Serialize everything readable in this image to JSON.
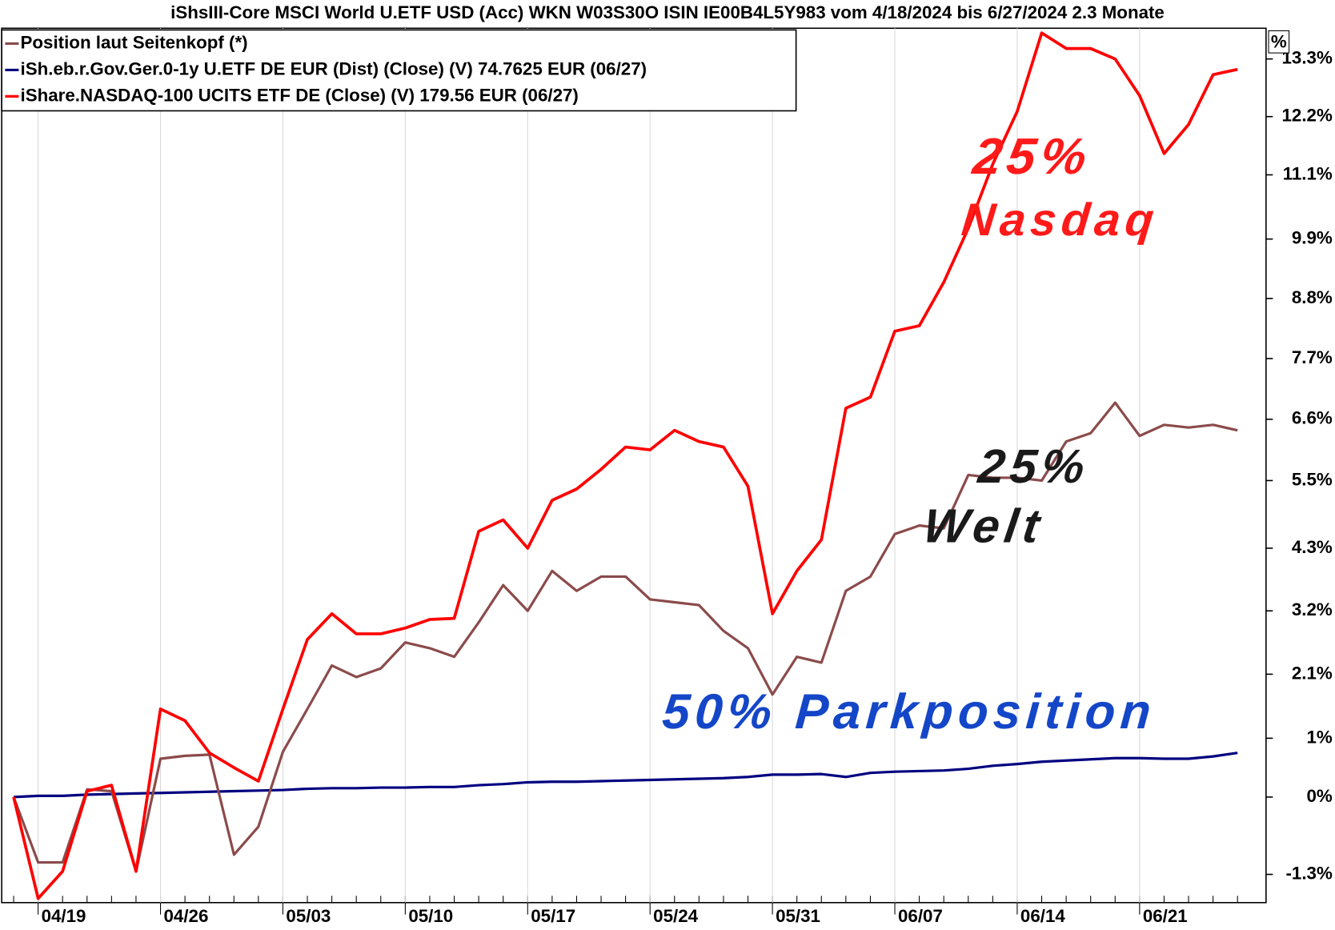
{
  "chart_data": {
    "type": "line",
    "title": "iShsIII-Core MSCI World U.ETF USD (Acc) WKN W03S30O ISIN IE00B4L5Y983 vom 4/18/2024 bis 6/27/2024 2.3 Monate",
    "y_axis_label": "%",
    "categories": [
      null,
      "04/19",
      null,
      null,
      null,
      null,
      "04/26",
      null,
      null,
      null,
      null,
      "05/03",
      null,
      null,
      null,
      null,
      "05/10",
      null,
      null,
      null,
      null,
      "05/17",
      null,
      null,
      null,
      null,
      "05/24",
      null,
      null,
      null,
      null,
      "05/31",
      null,
      null,
      null,
      null,
      "06/07",
      null,
      null,
      null,
      null,
      "06/14",
      null,
      null,
      null,
      null,
      "06/21",
      null,
      null,
      null,
      null
    ],
    "series": [
      {
        "name": "Position laut Seitenkopf (*)",
        "color": "#8b4b4b",
        "values": [
          0,
          -1.1,
          -1.1,
          0.13,
          0.1,
          -1.25,
          0.65,
          0.7,
          0.72,
          -0.97,
          -0.5,
          0.77,
          1.5,
          2.25,
          2.05,
          2.2,
          2.65,
          2.55,
          2.4,
          3.0,
          3.65,
          3.2,
          3.9,
          3.55,
          3.8,
          3.8,
          3.4,
          3.35,
          3.3,
          2.85,
          2.55,
          1.75,
          2.4,
          2.3,
          3.55,
          3.8,
          4.55,
          4.7,
          4.65,
          5.6,
          5.55,
          5.55,
          5.5,
          6.2,
          6.35,
          6.9,
          6.3,
          6.5,
          6.45,
          6.5,
          6.4
        ]
      },
      {
        "name": "iSh.eb.r.Gov.Ger.0-1y U.ETF DE EUR (Dist) (Close) (V) 74.7625 EUR (06/27)",
        "color": "#000080",
        "values": [
          0,
          0.02,
          0.02,
          0.04,
          0.05,
          0.06,
          0.07,
          0.08,
          0.09,
          0.1,
          0.11,
          0.12,
          0.14,
          0.15,
          0.15,
          0.16,
          0.16,
          0.17,
          0.17,
          0.2,
          0.22,
          0.25,
          0.26,
          0.26,
          0.27,
          0.28,
          0.29,
          0.3,
          0.31,
          0.32,
          0.34,
          0.38,
          0.38,
          0.39,
          0.34,
          0.41,
          0.43,
          0.44,
          0.45,
          0.48,
          0.53,
          0.56,
          0.6,
          0.62,
          0.64,
          0.66,
          0.66,
          0.65,
          0.65,
          0.69,
          0.75
        ]
      },
      {
        "name": "iShare.NASDAQ-100 UCITS ETF DE (Close) (V) 179.56 EUR (06/27)",
        "color": "#ff0000",
        "values": [
          0,
          -1.7,
          -1.25,
          0.1,
          0.2,
          -1.25,
          1.5,
          1.3,
          0.75,
          0.5,
          0.27,
          1.5,
          2.7,
          3.15,
          2.8,
          2.8,
          2.9,
          3.05,
          3.07,
          4.6,
          4.8,
          4.3,
          5.15,
          5.35,
          5.7,
          6.1,
          6.05,
          6.4,
          6.2,
          6.1,
          5.4,
          3.15,
          3.9,
          4.45,
          6.8,
          7.0,
          8.2,
          8.3,
          9.1,
          10.1,
          11.3,
          12.3,
          13.8,
          13.5,
          13.5,
          13.3,
          12.6,
          11.5,
          12.05,
          13.0,
          13.1
        ]
      }
    ],
    "ylim": [
      -1.77,
      13.89
    ],
    "log_scale": true,
    "yticks": [
      {
        "value": -1.3,
        "label": "-1.3%"
      },
      {
        "value": 0,
        "label": "0%"
      },
      {
        "value": 1,
        "label": "1%"
      },
      {
        "value": 2.1,
        "label": "2.1%"
      },
      {
        "value": 3.2,
        "label": "3.2%"
      },
      {
        "value": 4.3,
        "label": "4.3%"
      },
      {
        "value": 5.5,
        "label": "5.5%"
      },
      {
        "value": 6.6,
        "label": "6.6%"
      },
      {
        "value": 7.7,
        "label": "7.7%"
      },
      {
        "value": 8.8,
        "label": "8.8%"
      },
      {
        "value": 9.9,
        "label": "9.9%"
      },
      {
        "value": 11.1,
        "label": "11.1%"
      },
      {
        "value": 12.2,
        "label": "12.2%"
      },
      {
        "value": 13.3,
        "label": "13.3%"
      }
    ],
    "legend": "top-left",
    "annotations": [
      {
        "text": "25%",
        "color": "#ff1a1a"
      },
      {
        "text": "Nasdaq",
        "color": "#ff1a1a"
      },
      {
        "text": "25%",
        "color": "#1a1a1a"
      },
      {
        "text": "Welt",
        "color": "#1a1a1a"
      },
      {
        "text": "50% Parkposition",
        "color": "#1446c8"
      }
    ]
  }
}
